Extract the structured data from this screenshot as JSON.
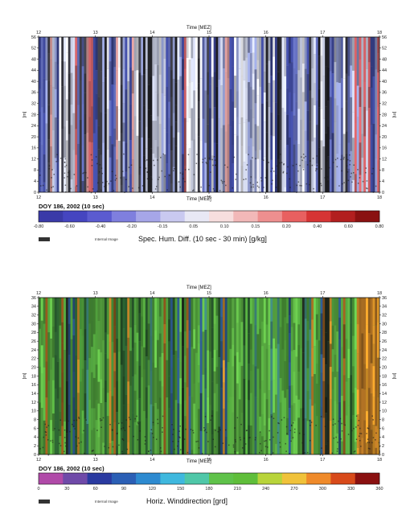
{
  "charts": [
    {
      "id": "humidity",
      "top_axis_label": "Time [MEZ]",
      "bottom_axis_label": "Time [MEZ]",
      "y_label_left": "[m]",
      "y_label_right": "[m]",
      "date_label": "DOY 186, 2002 (10 sec)",
      "caption": "Spec. Hum. Diff. (10 sec - 30 min) [g/kg]",
      "logo_text": "Internal Image",
      "colorbar_ticks": [
        "-0.80",
        "-0.60",
        "-0.40",
        "-0.20",
        "-0.15",
        "0.05",
        "0.10",
        "0.15",
        "0.20",
        "0.40",
        "0.60",
        "0.80"
      ],
      "colorbar_colors": [
        "#3a3aa8",
        "#4545c0",
        "#5b5bd0",
        "#7f7fde",
        "#a6a6e8",
        "#c9c9f0",
        "#e8e8f5",
        "#f7dede",
        "#f2b8b8",
        "#ee8f8f",
        "#e86060",
        "#d63434",
        "#b21f1f",
        "#8a1111"
      ]
    },
    {
      "id": "winddir",
      "top_axis_label": "Time [MEZ]",
      "bottom_axis_label": "Time [MEZ]",
      "y_label_left": "[m]",
      "y_label_right": "[m]",
      "date_label": "DOY 186, 2002 (10 sec)",
      "caption": "Horiz. Winddirection [grd]",
      "logo_text": "Internal Image",
      "colorbar_ticks": [
        "0",
        "30",
        "60",
        "90",
        "120",
        "150",
        "180",
        "210",
        "240",
        "270",
        "300",
        "330",
        "360"
      ],
      "colorbar_colors": [
        "#b04aa8",
        "#6f4aa8",
        "#2a3aa0",
        "#2b5fb5",
        "#2d8ad0",
        "#3fb8de",
        "#4fc7a8",
        "#5fc24a",
        "#5fbe3a",
        "#b8d43a",
        "#f0c23a",
        "#ef8a2a",
        "#d84a1a",
        "#8a1010"
      ]
    }
  ],
  "chart_data": [
    {
      "type": "heatmap",
      "x_axis": {
        "label": "Time [MEZ]",
        "ticks": [
          "12",
          "13",
          "14",
          "15",
          "16",
          "17",
          "18"
        ],
        "range": [
          12,
          18
        ]
      },
      "y_axis": {
        "label": "[m]",
        "ticks": [
          "0",
          "4",
          "8",
          "12",
          "16",
          "20",
          "24",
          "28",
          "32",
          "36",
          "40",
          "44",
          "48",
          "52",
          "56"
        ],
        "range": [
          0,
          56
        ]
      },
      "colorbar": {
        "label": "Spec. Hum. Diff. (10 sec - 30 min) [g/kg]",
        "ticks": [
          "-0.80",
          "-0.60",
          "-0.40",
          "-0.20",
          "-0.15",
          "0.05",
          "0.10",
          "0.15",
          "0.20",
          "0.40",
          "0.60",
          "0.80"
        ]
      }
    },
    {
      "type": "heatmap",
      "x_axis": {
        "label": "Time [MEZ]",
        "ticks": [
          "12",
          "13",
          "14",
          "15",
          "16",
          "17",
          "18"
        ],
        "range": [
          12,
          18
        ]
      },
      "y_axis": {
        "label": "[m]",
        "ticks": [
          "0",
          "2",
          "4",
          "6",
          "8",
          "10",
          "12",
          "14",
          "16",
          "18",
          "20",
          "22",
          "24",
          "26",
          "28",
          "30",
          "32",
          "34",
          "36"
        ],
        "range": [
          0,
          36
        ]
      },
      "colorbar": {
        "label": "Horiz. Winddirection [grd]",
        "ticks": [
          "0",
          "30",
          "60",
          "90",
          "120",
          "150",
          "180",
          "210",
          "240",
          "270",
          "300",
          "330",
          "360"
        ]
      }
    }
  ]
}
